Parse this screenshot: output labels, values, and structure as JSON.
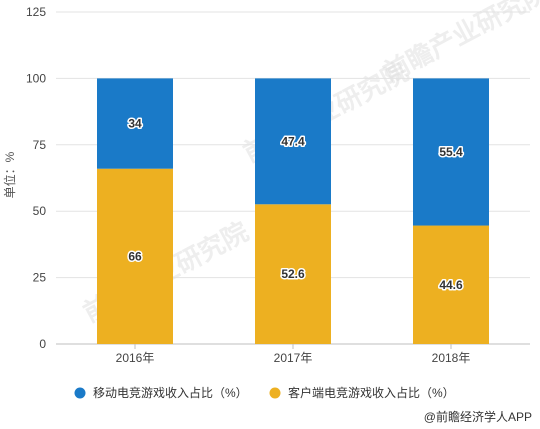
{
  "chart_data": {
    "type": "bar",
    "stacked": true,
    "categories": [
      "2016年",
      "2017年",
      "2018年"
    ],
    "series": [
      {
        "name": "客户端电竞游戏收入占比（%）",
        "color": "#EDB021",
        "values": [
          66,
          52.6,
          44.6
        ]
      },
      {
        "name": "移动电竞游戏收入占比（%）",
        "color": "#1A7AC8",
        "values": [
          34,
          47.4,
          55.4
        ]
      }
    ],
    "legend_order": [
      1,
      0
    ],
    "title": "",
    "xlabel": "",
    "ylabel": "单位：%",
    "ylim": [
      0,
      125
    ],
    "yticks": [
      0,
      25,
      50,
      75,
      100,
      125
    ],
    "grid": true,
    "legend_position": "bottom",
    "data_labels": true
  },
  "watermark": "前瞻产业研究院",
  "source": "@前瞻经济学人APP"
}
